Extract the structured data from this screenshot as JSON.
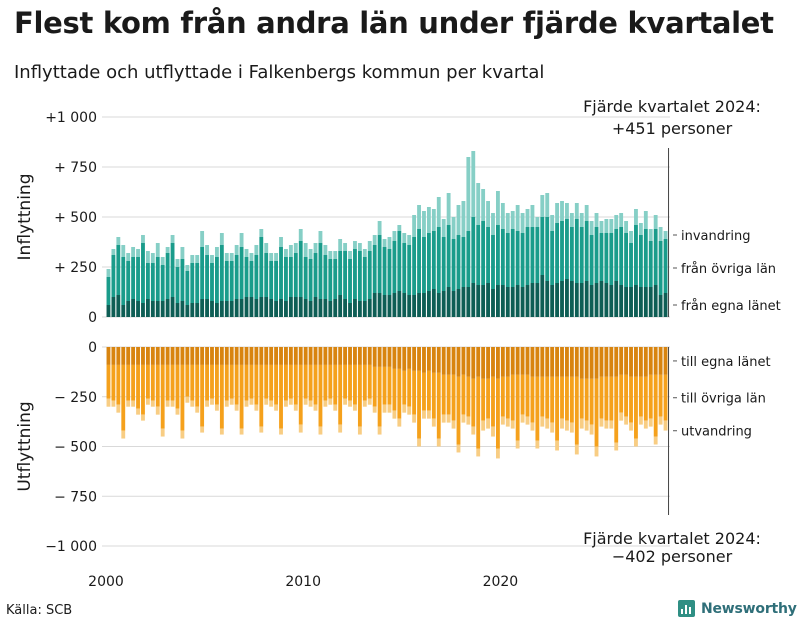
{
  "title": "Flest kom från andra län under fjärde kvartalet",
  "subtitle": "Inflyttade och utflyttade i Falkenbergs kommun per kvartal",
  "source": "Källa: SCB",
  "logo_text": "Newsworthy",
  "chart_data": {
    "type": "bar",
    "stacked": true,
    "x_label": "",
    "x_ticks": [
      "2000",
      "2010",
      "2020"
    ],
    "panels": [
      {
        "name": "Inflyttning",
        "ylim": [
          0,
          1000
        ],
        "y_ticks": [
          "0",
          "+ 250",
          "+ 500",
          "+ 750",
          "+1 000"
        ],
        "y_tick_values": [
          0,
          250,
          500,
          750,
          1000
        ],
        "annotation": [
          "Fjärde kvartalet 2024:",
          "+451 personer"
        ],
        "series": [
          {
            "name": "från egna länet",
            "color": "#0e5e55",
            "values": [
              60,
              100,
              110,
              60,
              80,
              90,
              80,
              70,
              90,
              80,
              80,
              80,
              90,
              100,
              70,
              80,
              60,
              70,
              70,
              90,
              90,
              80,
              70,
              80,
              80,
              80,
              90,
              90,
              100,
              100,
              90,
              100,
              100,
              90,
              80,
              90,
              80,
              100,
              100,
              100,
              90,
              80,
              100,
              90,
              90,
              80,
              90,
              110,
              90,
              70,
              90,
              80,
              80,
              90,
              120,
              120,
              110,
              110,
              120,
              130,
              120,
              110,
              110,
              120,
              120,
              130,
              140,
              120,
              130,
              150,
              130,
              140,
              150,
              150,
              170,
              160,
              160,
              170,
              140,
              160,
              160,
              150,
              150,
              160,
              150,
              160,
              170,
              170,
              210,
              180,
              160,
              170,
              180,
              190,
              180,
              170,
              170,
              180,
              160,
              170,
              180,
              170,
              160,
              180,
              160,
              150,
              150,
              160,
              150,
              150,
              150,
              160,
              110,
              120
            ]
          },
          {
            "name": "från övriga län",
            "color": "#1a9c8b",
            "values": [
              140,
              210,
              250,
              240,
              200,
              210,
              220,
              300,
              180,
              190,
              220,
              180,
              230,
              270,
              180,
              210,
              170,
              200,
              200,
              260,
              220,
              190,
              230,
              280,
              200,
              200,
              220,
              260,
              200,
              180,
              220,
              300,
              220,
              190,
              200,
              260,
              220,
              200,
              220,
              280,
              210,
              210,
              220,
              280,
              220,
              210,
              200,
              220,
              240,
              220,
              250,
              250,
              220,
              240,
              240,
              290,
              240,
              230,
              260,
              300,
              250,
              250,
              290,
              320,
              280,
              290,
              290,
              330,
              270,
              310,
              260,
              270,
              250,
              280,
              330,
              300,
              320,
              280,
              270,
              300,
              280,
              270,
              290,
              270,
              270,
              290,
              280,
              280,
              290,
              320,
              270,
              300,
              300,
              300,
              270,
              320,
              280,
              300,
              250,
              280,
              240,
              250,
              260,
              260,
              290,
              270,
              220,
              300,
              260,
              290,
              230,
              280,
              270,
              270
            ]
          },
          {
            "name": "invandring",
            "color": "#86cfc6",
            "values": [
              40,
              30,
              40,
              60,
              40,
              50,
              40,
              40,
              60,
              50,
              70,
              40,
              30,
              40,
              40,
              60,
              30,
              40,
              40,
              80,
              50,
              40,
              50,
              60,
              40,
              40,
              50,
              70,
              40,
              40,
              50,
              40,
              50,
              40,
              40,
              50,
              40,
              60,
              50,
              60,
              70,
              50,
              50,
              60,
              50,
              40,
              40,
              60,
              40,
              40,
              40,
              40,
              40,
              50,
              50,
              70,
              40,
              60,
              50,
              30,
              50,
              50,
              110,
              120,
              130,
              130,
              110,
              150,
              90,
              160,
              110,
              150,
              180,
              370,
              330,
              210,
              160,
              130,
              110,
              170,
              130,
              100,
              90,
              130,
              100,
              90,
              110,
              50,
              110,
              120,
              80,
              100,
              100,
              80,
              70,
              80,
              70,
              80,
              70,
              70,
              60,
              70,
              70,
              70,
              70,
              60,
              60,
              80,
              60,
              90,
              60,
              70,
              70,
              40
            ]
          }
        ]
      },
      {
        "name": "Utflyttning",
        "ylim": [
          -1000,
          0
        ],
        "y_ticks": [
          "0",
          "− 250",
          "− 500",
          "− 750",
          "−1 000"
        ],
        "y_tick_values": [
          0,
          -250,
          -500,
          -750,
          -1000
        ],
        "annotation": [
          "Fjärde kvartalet 2024:",
          "−402 personer"
        ],
        "series": [
          {
            "name": "till egna länet",
            "color": "#d8840f",
            "values": [
              -90,
              -90,
              -90,
              -90,
              -90,
              -90,
              -90,
              -90,
              -90,
              -90,
              -90,
              -90,
              -90,
              -90,
              -90,
              -90,
              -90,
              -90,
              -90,
              -90,
              -90,
              -90,
              -90,
              -90,
              -90,
              -90,
              -90,
              -90,
              -90,
              -90,
              -90,
              -90,
              -90,
              -90,
              -90,
              -90,
              -90,
              -90,
              -90,
              -90,
              -90,
              -90,
              -90,
              -90,
              -90,
              -90,
              -90,
              -90,
              -90,
              -90,
              -90,
              -90,
              -90,
              -90,
              -100,
              -100,
              -100,
              -100,
              -110,
              -110,
              -120,
              -110,
              -120,
              -120,
              -130,
              -120,
              -130,
              -130,
              -140,
              -140,
              -140,
              -150,
              -140,
              -150,
              -160,
              -150,
              -160,
              -160,
              -150,
              -160,
              -150,
              -150,
              -140,
              -140,
              -140,
              -140,
              -150,
              -150,
              -150,
              -150,
              -150,
              -150,
              -150,
              -150,
              -150,
              -150,
              -160,
              -160,
              -160,
              -160,
              -150,
              -150,
              -150,
              -150,
              -140,
              -140,
              -150,
              -150,
              -150,
              -150,
              -140,
              -140,
              -140,
              -140
            ]
          },
          {
            "name": "till övriga län",
            "color": "#f5a11c",
            "values": [
              -170,
              -180,
              -200,
              -330,
              -180,
              -180,
              -220,
              -250,
              -170,
              -180,
              -210,
              -320,
              -180,
              -180,
              -220,
              -330,
              -160,
              -180,
              -210,
              -310,
              -180,
              -170,
              -200,
              -320,
              -180,
              -170,
              -200,
              -320,
              -180,
              -170,
              -200,
              -310,
              -170,
              -180,
              -200,
              -320,
              -180,
              -170,
              -200,
              -300,
              -170,
              -180,
              -200,
              -310,
              -180,
              -170,
              -200,
              -300,
              -170,
              -180,
              -200,
              -310,
              -180,
              -170,
              -200,
              -300,
              -190,
              -190,
              -210,
              -250,
              -170,
              -190,
              -220,
              -340,
              -190,
              -200,
              -230,
              -330,
              -200,
              -200,
              -230,
              -340,
              -200,
              -200,
              -240,
              -360,
              -210,
              -200,
              -250,
              -350,
              -200,
              -210,
              -230,
              -330,
              -200,
              -210,
              -230,
              -320,
              -200,
              -210,
              -230,
              -320,
              -210,
              -220,
              -230,
              -340,
              -200,
              -210,
              -230,
              -340,
              -210,
              -220,
              -220,
              -330,
              -190,
              -210,
              -230,
              -310,
              -200,
              -220,
              -220,
              -310,
              -210,
              -230
            ]
          },
          {
            "name": "utvandring",
            "color": "#f8cd83",
            "values": [
              -40,
              -30,
              -40,
              -40,
              -30,
              -30,
              -30,
              -30,
              -30,
              -30,
              -40,
              -40,
              -30,
              -30,
              -30,
              -40,
              -30,
              -30,
              -30,
              -30,
              -30,
              -30,
              -30,
              -30,
              -30,
              -30,
              -30,
              -30,
              -30,
              -30,
              -30,
              -30,
              -30,
              -30,
              -30,
              -30,
              -30,
              -30,
              -30,
              -40,
              -30,
              -30,
              -30,
              -40,
              -30,
              -30,
              -30,
              -40,
              -30,
              -30,
              -30,
              -40,
              -30,
              -30,
              -30,
              -40,
              -40,
              -40,
              -40,
              -40,
              -40,
              -40,
              -40,
              -40,
              -40,
              -40,
              -40,
              -40,
              -40,
              -40,
              -40,
              -40,
              -40,
              -40,
              -40,
              -40,
              -50,
              -50,
              -50,
              -50,
              -40,
              -40,
              -40,
              -40,
              -40,
              -40,
              -40,
              -40,
              -50,
              -50,
              -50,
              -50,
              -50,
              -50,
              -50,
              -50,
              -50,
              -50,
              -50,
              -50,
              -40,
              -40,
              -40,
              -40,
              -40,
              -40,
              -40,
              -40,
              -40,
              -40,
              -40,
              -40,
              -40,
              -50
            ]
          }
        ]
      }
    ]
  }
}
